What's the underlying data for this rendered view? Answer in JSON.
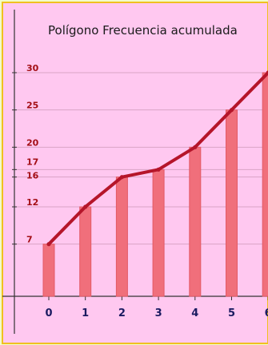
{
  "chart_data": {
    "type": "bar",
    "title": "Polígono Frecuencia acumulada",
    "categories": [
      "0",
      "1",
      "2",
      "3",
      "4",
      "5",
      "6"
    ],
    "values": [
      7,
      12,
      16,
      17,
      20,
      25,
      30
    ],
    "polygon": [
      7,
      12,
      16,
      17,
      20,
      25,
      30
    ],
    "y_ticks": [
      7,
      12,
      16,
      17,
      20,
      25,
      30
    ],
    "ylim": [
      0,
      30
    ],
    "grid": true,
    "xlabel": "",
    "ylabel": "",
    "colors": {
      "page_background": "#f3ffc8",
      "plot_background": "#ffc8f0",
      "frame": "#f0c020",
      "bar": "#f06f7b",
      "bar_edge": "#e35a67",
      "polygon_line": "#b5152a",
      "tick_label": "#a30e15",
      "x_label": "#1a1a60",
      "grid": "#d9a3c6"
    }
  }
}
